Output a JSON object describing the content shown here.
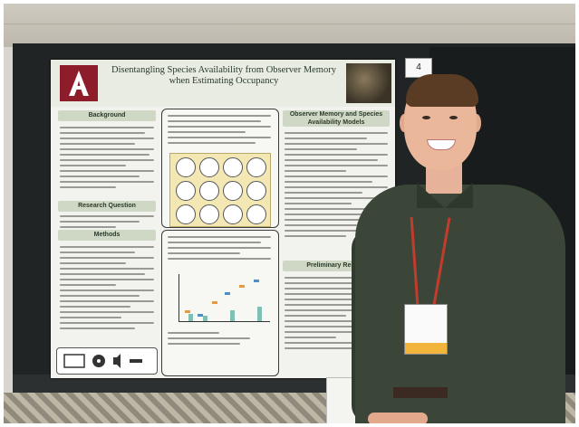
{
  "poster": {
    "title": "Disentangling Species Availability from Observer Memory when Estimating Occupancy",
    "authors": "",
    "affiliation": "",
    "sections": {
      "background": "Background",
      "research_question": "Research Question",
      "methods": "Methods",
      "memory": "Observer Memory and Species Availability Models",
      "preliminary": "Preliminary Results"
    }
  },
  "booth": {
    "number": "4"
  },
  "colors": {
    "board": "#202424",
    "poster_accent": "#cfd8c4",
    "logo": "#8e1d2c",
    "shirt": "#3c4638",
    "lanyard": "#c23c2e",
    "badge_band": "#f2b43a"
  },
  "icons": [
    "university-logo-icon",
    "bird-photo",
    "scatter-chart",
    "media-icons"
  ]
}
